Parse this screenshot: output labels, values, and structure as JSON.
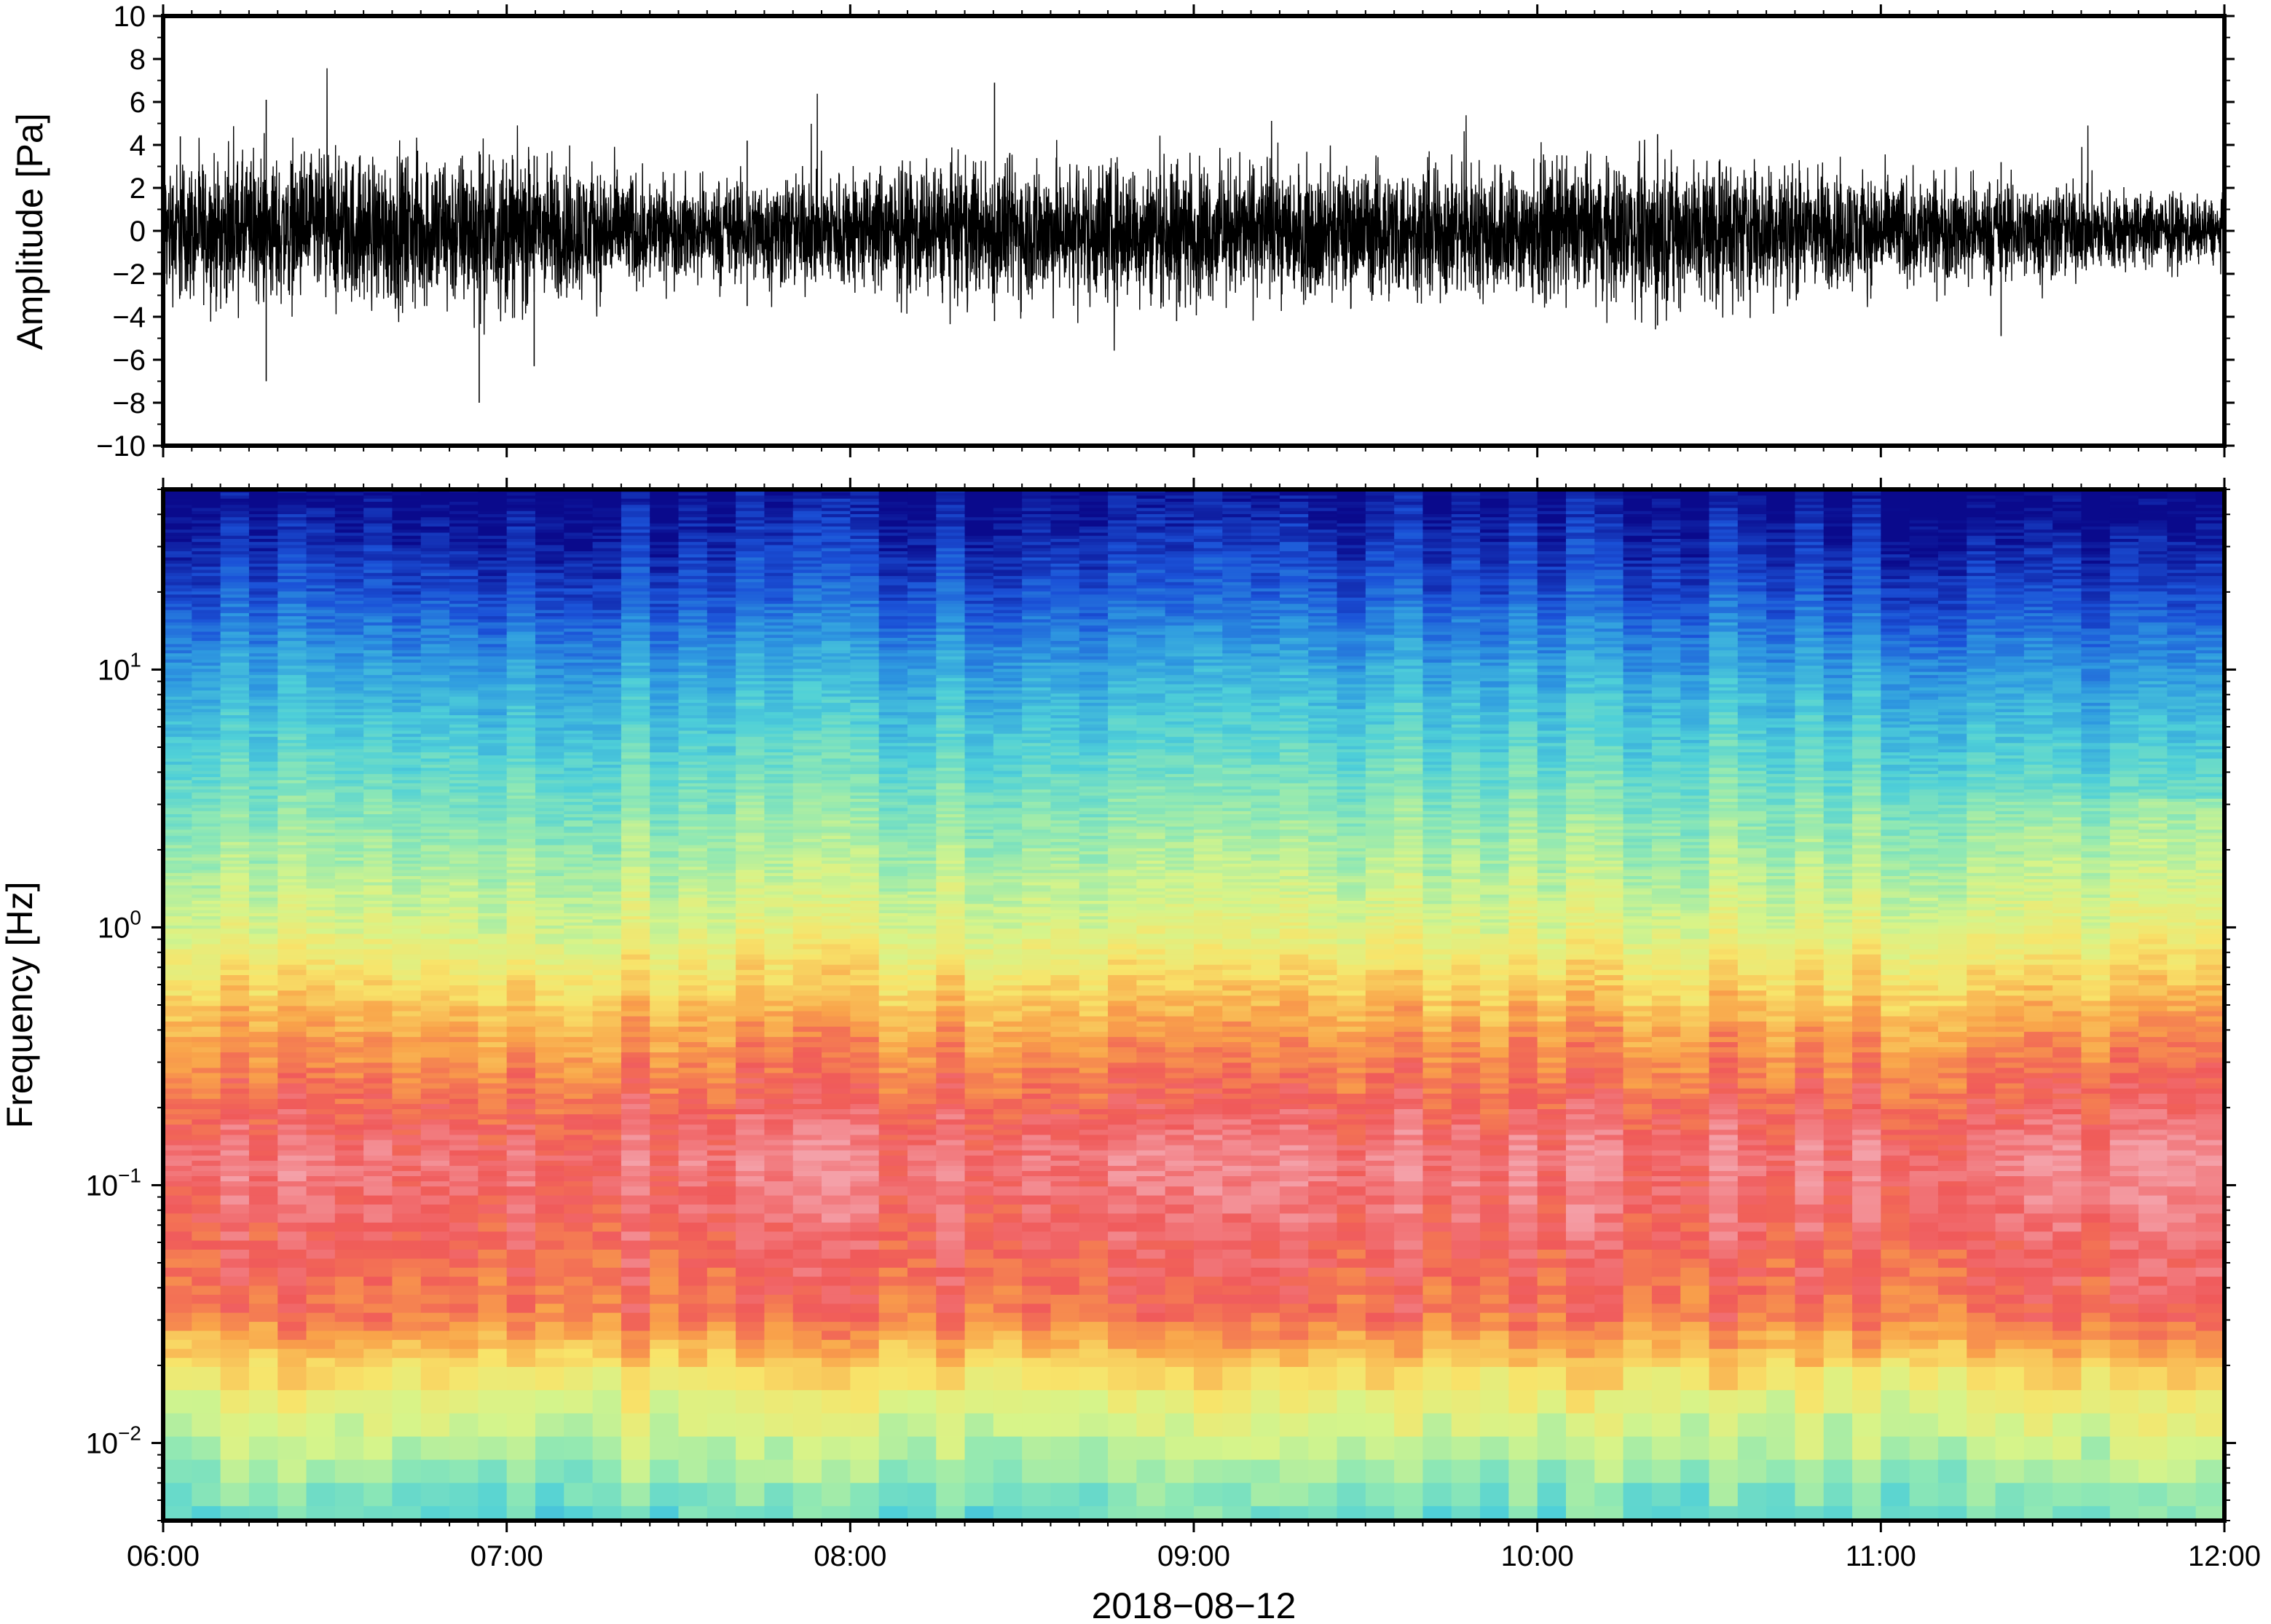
{
  "chart_data": [
    {
      "type": "line",
      "panel": "waveform",
      "ylabel": "Amplitude [Pa]",
      "ylim": [
        -10,
        10
      ],
      "yticks": [
        "10",
        "8",
        "6",
        "4",
        "2",
        "0",
        "−2",
        "−4",
        "−6",
        "−8",
        "−10"
      ],
      "yticks_values": [
        10,
        8,
        6,
        4,
        2,
        0,
        -2,
        -4,
        -6,
        -8,
        -10
      ],
      "xlim": [
        "06:00",
        "12:00"
      ],
      "grid": false,
      "series": [
        {
          "values_description_hours": [
            6.0,
            6.5,
            7.0,
            7.5,
            8.0,
            8.5,
            9.0,
            9.5,
            10.0,
            10.5,
            11.0,
            11.5,
            12.0
          ],
          "envelope_amplitude_pa": [
            2.2,
            2.4,
            2.6,
            1.6,
            2.0,
            2.3,
            2.2,
            2.1,
            2.2,
            2.4,
            1.8,
            1.6,
            1.0
          ]
        }
      ],
      "peaks": [
        {
          "time": 6.3,
          "max": 6.1,
          "min": -7.0
        },
        {
          "time": 6.92,
          "max": 3.7,
          "min": -8.0
        },
        {
          "time": 7.08,
          "max": 3.5,
          "min": -6.3
        },
        {
          "time": 8.42,
          "max": 6.9,
          "min": -4.2
        },
        {
          "time": 7.7,
          "max": 4.2,
          "min": -3.5
        },
        {
          "time": 10.35,
          "max": 4.5,
          "min": -4.4
        },
        {
          "time": 11.35,
          "max": 3.2,
          "min": -4.9
        },
        {
          "time": 6.05,
          "max": 4.4,
          "min": -3.0
        },
        {
          "time": 8.95,
          "max": 3.1,
          "min": -4.2
        }
      ]
    },
    {
      "type": "heatmap",
      "panel": "spectrogram",
      "ylabel": "Frequency [Hz]",
      "yscale": "log",
      "ylim": [
        0.005,
        50
      ],
      "yticks": [
        {
          "base": "10",
          "exp": "1",
          "value": 10
        },
        {
          "base": "10",
          "exp": "0",
          "value": 1
        },
        {
          "base": "10",
          "exp": "−1",
          "value": 0.1
        },
        {
          "base": "10",
          "exp": "−2",
          "value": 0.01
        }
      ],
      "xlabel": "2018−08−12",
      "xticks": [
        "06:00",
        "07:00",
        "08:00",
        "09:00",
        "10:00",
        "11:00",
        "12:00"
      ],
      "xticks_hours": [
        6,
        7,
        8,
        9,
        10,
        11,
        12
      ],
      "colormap": [
        "#0a0a8c",
        "#1b52d8",
        "#2f9be0",
        "#4fd0d8",
        "#8fe8b4",
        "#d6f48a",
        "#f8e46a",
        "#f9a34a",
        "#f05a5a",
        "#f4a0a8"
      ],
      "power_profile_by_log10_frequency": [
        {
          "log10f": 1.7,
          "level": 0.0
        },
        {
          "log10f": 1.3,
          "level": 0.12
        },
        {
          "log10f": 1.0,
          "level": 0.25
        },
        {
          "log10f": 0.5,
          "level": 0.42
        },
        {
          "log10f": 0.0,
          "level": 0.58
        },
        {
          "log10f": -0.4,
          "level": 0.78
        },
        {
          "log10f": -0.9,
          "level": 0.95
        },
        {
          "log10f": -1.5,
          "level": 0.85
        },
        {
          "log10f": -1.8,
          "level": 0.62
        },
        {
          "log10f": -2.3,
          "level": 0.38
        }
      ],
      "grid": false
    }
  ]
}
